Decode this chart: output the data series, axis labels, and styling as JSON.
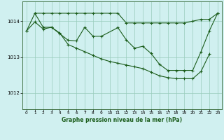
{
  "xlabel": "Graphe pression niveau de la mer (hPa)",
  "x_ticks": [
    0,
    1,
    2,
    3,
    4,
    5,
    6,
    7,
    8,
    9,
    10,
    11,
    12,
    13,
    14,
    15,
    16,
    17,
    18,
    19,
    20,
    21,
    22,
    23
  ],
  "ylim": [
    1011.55,
    1014.55
  ],
  "yticks": [
    1012,
    1013,
    1014
  ],
  "bg_color": "#d0f0f0",
  "grid_color": "#99ccbb",
  "line_color": "#1a5c1a",
  "line1_x": [
    0,
    1,
    2,
    3,
    4,
    5,
    6,
    7,
    8,
    9,
    10,
    11,
    12,
    13,
    14,
    15,
    16,
    17,
    18,
    19,
    20,
    21,
    22,
    23
  ],
  "line1_y": [
    1013.73,
    1014.22,
    1014.22,
    1014.22,
    1014.22,
    1014.22,
    1014.22,
    1014.22,
    1014.22,
    1014.22,
    1014.22,
    1014.22,
    1013.95,
    1013.95,
    1013.95,
    1013.95,
    1013.95,
    1013.95,
    1013.95,
    1013.95,
    1014.0,
    1014.05,
    1014.05,
    1014.22
  ],
  "line2_x": [
    1,
    2,
    3,
    4,
    5,
    6,
    7,
    8,
    9,
    11,
    12,
    13,
    14,
    15,
    16,
    17,
    18,
    19,
    20,
    21,
    22,
    23
  ],
  "line2_y": [
    1014.22,
    1013.83,
    1013.83,
    1013.65,
    1013.47,
    1013.45,
    1013.83,
    1013.58,
    1013.58,
    1013.82,
    1013.48,
    1013.25,
    1013.3,
    1013.1,
    1012.8,
    1012.63,
    1012.63,
    1012.63,
    1012.63,
    1013.15,
    1013.73,
    1014.22
  ],
  "line3_x": [
    0,
    1,
    2,
    3,
    4,
    5,
    6,
    7,
    8,
    9,
    10,
    11,
    12,
    13,
    14,
    15,
    16,
    17,
    18,
    19,
    20,
    21,
    22
  ],
  "line3_y": [
    1013.73,
    1013.98,
    1013.78,
    1013.83,
    1013.67,
    1013.35,
    1013.25,
    1013.15,
    1013.05,
    1012.95,
    1012.88,
    1012.83,
    1012.78,
    1012.73,
    1012.68,
    1012.58,
    1012.48,
    1012.43,
    1012.4,
    1012.4,
    1012.4,
    1012.6,
    1013.08
  ]
}
